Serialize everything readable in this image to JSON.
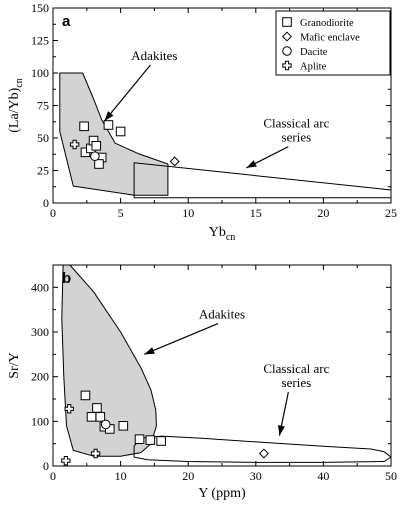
{
  "chart_data": [
    {
      "type": "scatter",
      "panel": "a",
      "title": "",
      "xlabel_main": "Yb",
      "xlabel_sub": "cn",
      "ylabel_main": "(La/Yb)",
      "ylabel_sub": "cn",
      "xlim": [
        0,
        25
      ],
      "ylim": [
        0,
        150
      ],
      "xticks": [
        0,
        5,
        10,
        15,
        20,
        25
      ],
      "yticks": [
        0,
        25,
        50,
        75,
        100,
        125,
        150
      ],
      "legend": {
        "placement": "top-right",
        "entries": [
          {
            "label": "Granodiorite",
            "marker": "square"
          },
          {
            "label": "Mafic enclave",
            "marker": "diamond"
          },
          {
            "label": "Dacite",
            "marker": "circle"
          },
          {
            "label": "Aplite",
            "marker": "cross"
          }
        ]
      },
      "series": [
        {
          "name": "Granodiorite",
          "marker": "square",
          "points": [
            [
              2.3,
              59
            ],
            [
              4.1,
              60
            ],
            [
              5,
              55
            ],
            [
              2.4,
              39
            ],
            [
              2.8,
              42
            ],
            [
              3,
              48
            ],
            [
              3.2,
              44
            ],
            [
              3.6,
              35
            ],
            [
              3.4,
              30
            ]
          ]
        },
        {
          "name": "Mafic enclave",
          "marker": "diamond",
          "points": [
            [
              9,
              32
            ]
          ]
        },
        {
          "name": "Dacite",
          "marker": "circle",
          "points": [
            [
              3.1,
              36
            ]
          ]
        },
        {
          "name": "Aplite",
          "marker": "cross",
          "points": [
            [
              1.6,
              45
            ]
          ]
        }
      ],
      "fields": [
        {
          "label": "Adakites",
          "fill": "#d3d3d3",
          "polygon": [
            [
              0.5,
              100
            ],
            [
              2.2,
              100
            ],
            [
              3,
              80
            ],
            [
              3.6,
              64
            ],
            [
              4.6,
              46
            ],
            [
              6.3,
              38
            ],
            [
              8.5,
              30
            ],
            [
              8.5,
              6
            ],
            [
              6,
              6
            ],
            [
              1.5,
              13
            ],
            [
              0.5,
              55
            ]
          ]
        },
        {
          "label": "Classical arc series",
          "fill": "none",
          "polygon": [
            [
              6,
              31
            ],
            [
              25,
              10
            ],
            [
              25,
              4
            ],
            [
              6,
              4
            ]
          ]
        }
      ],
      "annotations": [
        {
          "text": "Adakites",
          "at": [
            7.5,
            110
          ],
          "arrow_to": [
            3.8,
            63
          ]
        },
        {
          "text_lines": [
            "Classical arc",
            "series"
          ],
          "at": [
            18,
            58
          ],
          "arrow_to": [
            14.3,
            27
          ]
        }
      ]
    },
    {
      "type": "scatter",
      "panel": "b",
      "title": "",
      "xlabel": "Y (ppm)",
      "ylabel": "Sr/Y",
      "xlim": [
        0,
        50
      ],
      "ylim": [
        0,
        450
      ],
      "xticks": [
        0,
        10,
        20,
        30,
        40,
        50
      ],
      "yticks": [
        0,
        100,
        200,
        300,
        400
      ],
      "series": [
        {
          "name": "Granodiorite",
          "marker": "square",
          "points": [
            [
              4.8,
              158
            ],
            [
              5.7,
              110
            ],
            [
              6.5,
              130
            ],
            [
              7,
              110
            ],
            [
              7.6,
              88
            ],
            [
              8.4,
              83
            ],
            [
              10.4,
              90
            ],
            [
              12.8,
              60
            ],
            [
              14.4,
              58
            ],
            [
              16,
              56
            ]
          ]
        },
        {
          "name": "Mafic enclave",
          "marker": "diamond",
          "points": [
            [
              31.2,
              28
            ]
          ]
        },
        {
          "name": "Dacite",
          "marker": "circle",
          "points": [
            [
              7.8,
              93
            ]
          ]
        },
        {
          "name": "Aplite",
          "marker": "cross",
          "points": [
            [
              2.4,
              128
            ],
            [
              6.3,
              28
            ],
            [
              1.9,
              12
            ]
          ]
        }
      ],
      "fields": [
        {
          "label": "Adakites",
          "fill": "#d3d3d3",
          "polygon": [
            [
              1.5,
              450
            ],
            [
              2.5,
              450
            ],
            [
              6,
              390
            ],
            [
              10,
              300
            ],
            [
              13,
              220
            ],
            [
              14.5,
              170
            ],
            [
              15.2,
              125
            ],
            [
              15.3,
              90
            ],
            [
              14.5,
              50
            ],
            [
              13,
              30
            ],
            [
              10,
              22
            ],
            [
              6,
              22
            ],
            [
              3,
              35
            ],
            [
              2,
              90
            ],
            [
              1.6,
              200
            ],
            [
              1.3,
              330
            ]
          ]
        },
        {
          "label": "Classical arc series",
          "fill": "none",
          "polygon": [
            [
              13,
              62
            ],
            [
              16,
              67
            ],
            [
              22,
              62
            ],
            [
              30,
              54
            ],
            [
              40,
              44
            ],
            [
              47,
              38
            ],
            [
              49,
              32
            ],
            [
              50,
              20
            ],
            [
              49,
              10
            ],
            [
              40,
              8
            ],
            [
              30,
              8
            ],
            [
              20,
              10
            ],
            [
              14,
              14
            ],
            [
              12,
              20
            ],
            [
              12,
              45
            ]
          ]
        }
      ],
      "annotations": [
        {
          "text": "Adakites",
          "at": [
            25,
            330
          ],
          "arrow_to": [
            13.5,
            250
          ]
        },
        {
          "text_lines": [
            "Classical arc",
            "series"
          ],
          "at": [
            36,
            208
          ],
          "arrow_to": [
            33.5,
            68
          ]
        }
      ]
    }
  ]
}
